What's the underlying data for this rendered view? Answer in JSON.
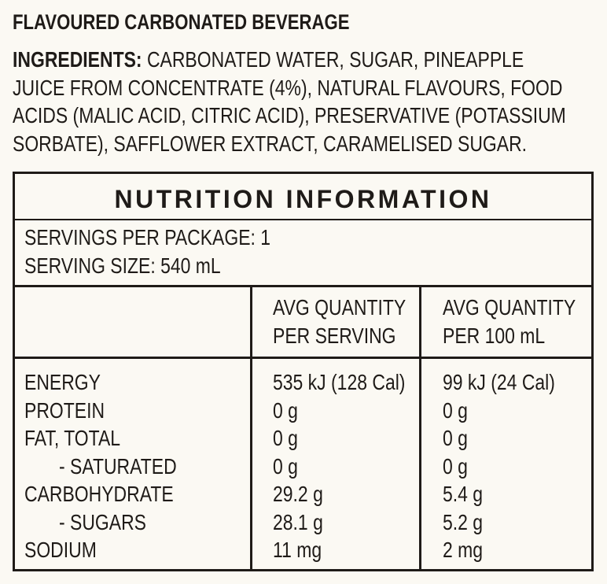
{
  "product": {
    "name": "FLAVOURED CARBONATED BEVERAGE"
  },
  "ingredients": {
    "label": "INGREDIENTS:",
    "text": " CARBONATED WATER, SUGAR, PINEAPPLE JUICE FROM CONCENTRATE (4%), NATURAL FLAVOURS, FOOD ACIDS (MALIC ACID, CITRIC ACID), PRESERVATIVE (POTASSIUM SORBATE), SAFFLOWER EXTRACT, CARAMELISED SUGAR."
  },
  "nutrition": {
    "title": "NUTRITION INFORMATION",
    "servings_per_package": "SERVINGS PER PACKAGE: 1",
    "serving_size": "SERVING SIZE: 540 mL",
    "columns": [
      {
        "line1": "AVG QUANTITY",
        "line2": "PER SERVING"
      },
      {
        "line1": "AVG QUANTITY",
        "line2": "PER 100 mL"
      }
    ],
    "rows": [
      {
        "name": "ENERGY",
        "per_serving": "535 kJ (128 Cal)",
        "per_100ml": "99 kJ (24 Cal)"
      },
      {
        "name": "PROTEIN",
        "per_serving": "0 g",
        "per_100ml": "0 g"
      },
      {
        "name": "FAT, TOTAL",
        "per_serving": "0 g",
        "per_100ml": "0 g"
      },
      {
        "name": "- SATURATED",
        "per_serving": "0 g",
        "per_100ml": "0 g"
      },
      {
        "name": "CARBOHYDRATE",
        "per_serving": "29.2 g",
        "per_100ml": "5.4 g"
      },
      {
        "name": "- SUGARS",
        "per_serving": "28.1 g",
        "per_100ml": "5.2 g"
      },
      {
        "name": "SODIUM",
        "per_serving": "11 mg",
        "per_100ml": "2 mg"
      }
    ]
  }
}
